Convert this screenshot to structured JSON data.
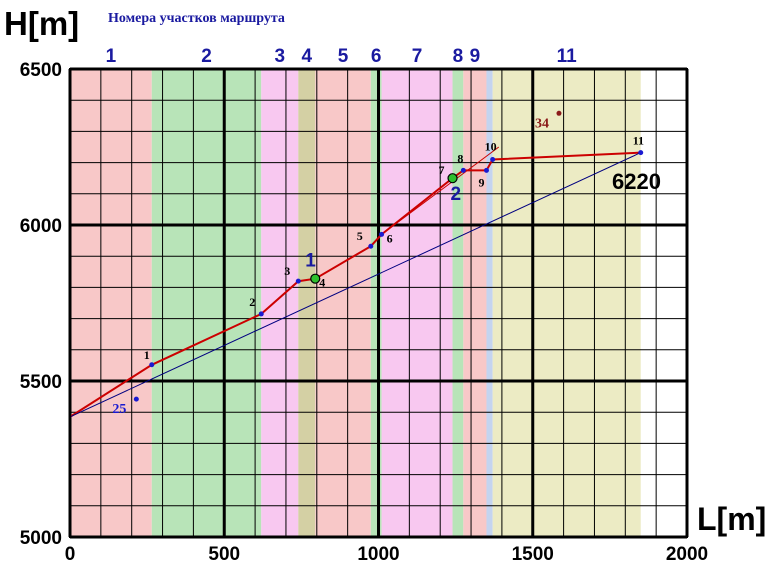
{
  "chart_data": {
    "type": "line",
    "ylabel": "H[m]",
    "xlabel": "L[m]",
    "subtitle": "Номера участков маршрута",
    "xlim": [
      0,
      2000
    ],
    "ylim": [
      5000,
      6500
    ],
    "x_ticks": [
      0,
      500,
      1000,
      1500,
      2000
    ],
    "y_ticks": [
      5000,
      5500,
      6000,
      6500
    ],
    "minor_step_x": 100,
    "minor_step_y": 100,
    "grid": true,
    "colors": {
      "pink": "#f8c8c8",
      "green": "#b8e4b8",
      "magenta": "#f8c8f0",
      "khaki": "#d4d0a4",
      "light_blue": "#c4d4f0",
      "olive": "#ecebc4",
      "route": "#cc0000",
      "reference": "#000080",
      "point": "#1a1ad0",
      "dark_red": "#8b1a1a"
    },
    "bands": [
      {
        "from": 0,
        "to": 265,
        "color": "pink",
        "label": "1"
      },
      {
        "from": 265,
        "to": 620,
        "color": "green",
        "label": "2"
      },
      {
        "from": 620,
        "to": 740,
        "color": "magenta",
        "label": "3"
      },
      {
        "from": 740,
        "to": 795,
        "color": "khaki",
        "label": "4"
      },
      {
        "from": 795,
        "to": 975,
        "color": "pink",
        "label": "5"
      },
      {
        "from": 975,
        "to": 1010,
        "color": "green",
        "label": "6"
      },
      {
        "from": 1010,
        "to": 1240,
        "color": "magenta",
        "label": "7"
      },
      {
        "from": 1240,
        "to": 1275,
        "color": "green",
        "label": "8"
      },
      {
        "from": 1275,
        "to": 1350,
        "color": "pink",
        "label": "9"
      },
      {
        "from": 1350,
        "to": 1370,
        "color": "light_blue",
        "label": ""
      },
      {
        "from": 1370,
        "to": 1850,
        "color": "olive",
        "label": "11"
      }
    ],
    "series": [
      {
        "type": "line",
        "color": "route",
        "points": [
          [
            0,
            5385
          ],
          [
            265,
            5552
          ],
          [
            620,
            5715
          ],
          [
            740,
            5820
          ],
          [
            795,
            5828
          ],
          [
            975,
            5932
          ],
          [
            1010,
            5970
          ],
          [
            1240,
            6150
          ],
          [
            1275,
            6175
          ],
          [
            1350,
            6175
          ],
          [
            1370,
            6210
          ],
          [
            1850,
            6232
          ]
        ]
      },
      {
        "type": "line",
        "color": "reference",
        "points": [
          [
            0,
            5385
          ],
          [
            1850,
            6232
          ]
        ]
      },
      {
        "type": "line",
        "color": "route",
        "points": [
          [
            1010,
            5970
          ],
          [
            1390,
            6250
          ]
        ]
      }
    ],
    "points": [
      {
        "label": "1",
        "x": 265,
        "y": 5552
      },
      {
        "label": "2",
        "x": 620,
        "y": 5715
      },
      {
        "label": "3",
        "x": 740,
        "y": 5820
      },
      {
        "label": "4",
        "x": 795,
        "y": 5828
      },
      {
        "label": "5",
        "x": 975,
        "y": 5932
      },
      {
        "label": "6",
        "x": 1010,
        "y": 5970
      },
      {
        "label": "7",
        "x": 1240,
        "y": 6150
      },
      {
        "label": "8",
        "x": 1275,
        "y": 6175
      },
      {
        "label": "9",
        "x": 1350,
        "y": 6175
      },
      {
        "label": "10",
        "x": 1370,
        "y": 6210
      },
      {
        "label": "11",
        "x": 1850,
        "y": 6232
      }
    ],
    "extra_points": [
      {
        "label": "25",
        "x": 215,
        "y": 5442,
        "color": "point"
      },
      {
        "label": "34",
        "x": 1585,
        "y": 6358,
        "color": "dark_red"
      }
    ],
    "markers": [
      {
        "label": "1",
        "x": 795,
        "y": 5828
      },
      {
        "label": "2",
        "x": 1240,
        "y": 6150
      }
    ],
    "annotation": "6220"
  }
}
